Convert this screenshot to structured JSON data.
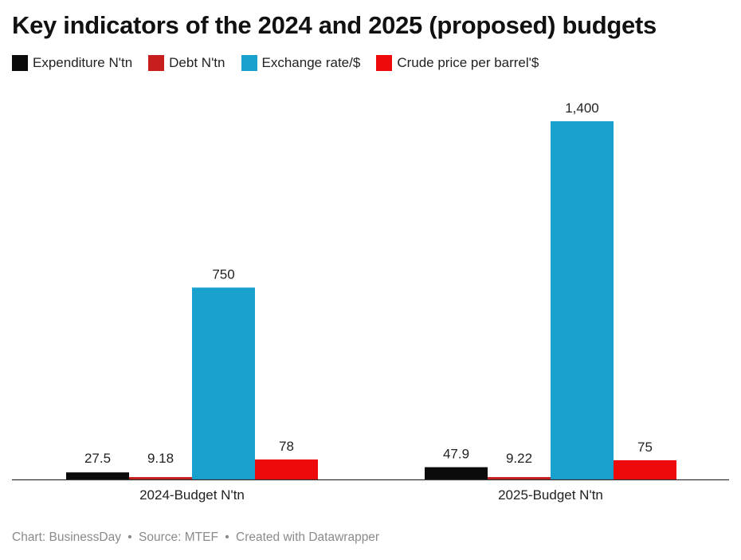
{
  "chart_data": {
    "type": "bar",
    "title": "Key indicators of the 2024 and 2025 (proposed) budgets",
    "xlabel": "",
    "ylabel": "",
    "ylim": [
      0,
      1400
    ],
    "grid": false,
    "legend_position": "top-left",
    "categories": [
      "2024-Budget N'tn",
      "2025-Budget N'tn"
    ],
    "series": [
      {
        "name": "Expenditure N'tn",
        "color": "#0b0b0b",
        "values": [
          27.5,
          47.9
        ],
        "labels": [
          "27.5",
          "47.9"
        ]
      },
      {
        "name": "Debt N'tn",
        "color": "#c81e1e",
        "values": [
          9.18,
          9.22
        ],
        "labels": [
          "9.18",
          "9.22"
        ]
      },
      {
        "name": "Exchange rate/$",
        "color": "#18a1cd",
        "values": [
          750,
          1400
        ],
        "labels": [
          "750",
          "1,400"
        ]
      },
      {
        "name": "Crude price per barrel'$",
        "color": "#ee0a0a",
        "values": [
          78,
          75
        ],
        "labels": [
          "78",
          "75"
        ]
      }
    ]
  },
  "footer": {
    "chart_credit": "Chart: BusinessDay",
    "source": "Source: MTEF",
    "created_with": "Created with Datawrapper",
    "separator": "•"
  }
}
